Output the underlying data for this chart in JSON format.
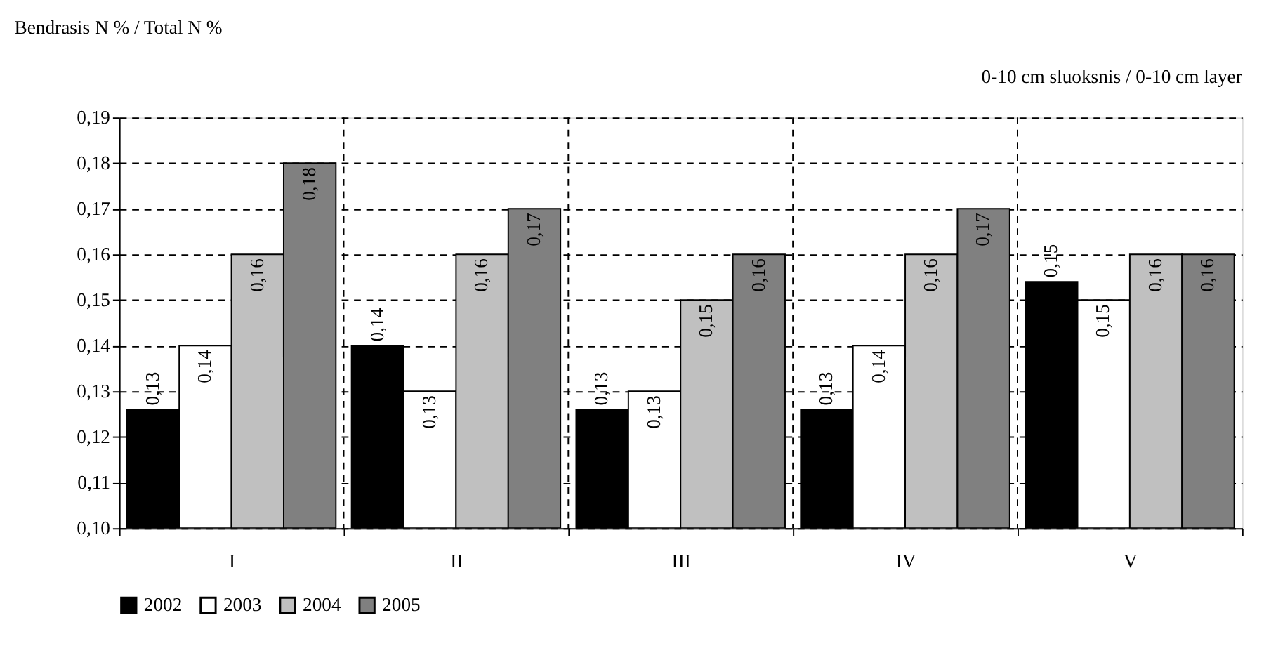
{
  "chart_data": {
    "type": "bar",
    "title": "Bendrasis N % / Total N %",
    "annotations": [
      "0-10 cm sluoksnis / 0-10 cm layer"
    ],
    "categories": [
      "I",
      "II",
      "III",
      "IV",
      "V"
    ],
    "series": [
      {
        "name": "2002",
        "color": "#000000",
        "values": [
          0.126,
          0.14,
          0.126,
          0.126,
          0.154
        ],
        "value_labels": [
          "0,13",
          "0,14",
          "0,13",
          "0,13",
          "0,15"
        ]
      },
      {
        "name": "2003",
        "color": "#ffffff",
        "values": [
          0.14,
          0.13,
          0.13,
          0.14,
          0.15
        ],
        "value_labels": [
          "0,14",
          "0,13",
          "0,13",
          "0,14",
          "0,15"
        ]
      },
      {
        "name": "2004",
        "color": "#c0c0c0",
        "values": [
          0.16,
          0.16,
          0.15,
          0.16,
          0.16
        ],
        "value_labels": [
          "0,16",
          "0,16",
          "0,15",
          "0,16",
          "0,16"
        ]
      },
      {
        "name": "2005",
        "color": "#808080",
        "values": [
          0.18,
          0.17,
          0.16,
          0.17,
          0.16
        ],
        "value_labels": [
          "0,18",
          "0,17",
          "0,16",
          "0,17",
          "0,16"
        ]
      }
    ],
    "ylim": [
      0.1,
      0.19
    ],
    "yticks": [
      {
        "value": 0.1,
        "label": "0,10"
      },
      {
        "value": 0.11,
        "label": "0,11"
      },
      {
        "value": 0.12,
        "label": "0,12"
      },
      {
        "value": 0.13,
        "label": "0,13"
      },
      {
        "value": 0.14,
        "label": "0,14"
      },
      {
        "value": 0.15,
        "label": "0,15"
      },
      {
        "value": 0.16,
        "label": "0,16"
      },
      {
        "value": 0.17,
        "label": "0,17"
      },
      {
        "value": 0.18,
        "label": "0,18"
      },
      {
        "value": 0.19,
        "label": "0,19"
      }
    ],
    "grid": true,
    "legend": "bottom"
  }
}
